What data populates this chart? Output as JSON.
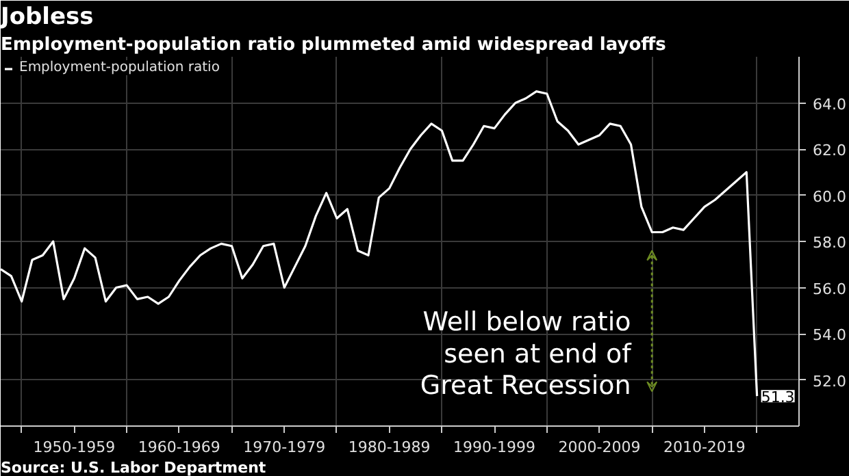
{
  "chart_data": {
    "type": "line",
    "title": "Jobless",
    "subtitle": "Employment-population ratio plummeted amid widespread layoffs",
    "categories": [
      null,
      null,
      null,
      null,
      null,
      null,
      null,
      "1950-1959",
      null,
      null,
      null,
      null,
      null,
      null,
      null,
      null,
      null,
      "1960-1969",
      null,
      null,
      null,
      null,
      null,
      null,
      null,
      null,
      null,
      "1970-1979",
      null,
      null,
      null,
      null,
      null,
      null,
      null,
      null,
      null,
      "1980-1989",
      null,
      null,
      null,
      null,
      null,
      null,
      null,
      null,
      null,
      "1990-1999",
      null,
      null,
      null,
      null,
      null,
      null,
      null,
      null,
      null,
      "2000-2009",
      null,
      null,
      null,
      null,
      null,
      null,
      null,
      null,
      null,
      "2010-2019",
      null,
      null,
      null,
      null,
      null
    ],
    "series": [
      {
        "name": "Employment-population ratio",
        "color": "#ffffff",
        "values": [
          56.8,
          56.5,
          55.4,
          57.2,
          57.4,
          58.0,
          55.5,
          56.4,
          57.7,
          57.3,
          55.4,
          56.0,
          56.1,
          55.5,
          55.6,
          55.3,
          55.6,
          56.3,
          56.9,
          57.4,
          57.7,
          57.9,
          57.8,
          56.4,
          57.0,
          57.8,
          57.9,
          56.0,
          56.9,
          57.8,
          59.1,
          60.1,
          59.0,
          59.4,
          57.6,
          57.4,
          59.9,
          60.3,
          61.2,
          62.0,
          62.6,
          63.1,
          62.8,
          61.5,
          61.5,
          62.2,
          63.0,
          62.9,
          63.5,
          64.0,
          64.2,
          64.5,
          64.4,
          63.2,
          62.8,
          62.2,
          62.4,
          62.6,
          63.1,
          63.0,
          62.2,
          59.5,
          58.4,
          58.4,
          58.6,
          58.5,
          59.0,
          59.5,
          59.8,
          60.2,
          60.6,
          61.0,
          51.3
        ],
        "value_labels": [
          null,
          null,
          null,
          null,
          null,
          null,
          null,
          null,
          null,
          null,
          null,
          null,
          null,
          null,
          null,
          null,
          null,
          null,
          null,
          null,
          null,
          null,
          null,
          null,
          null,
          null,
          null,
          null,
          null,
          null,
          null,
          null,
          null,
          null,
          null,
          null,
          null,
          null,
          null,
          null,
          null,
          null,
          null,
          null,
          null,
          null,
          null,
          null,
          null,
          null,
          null,
          null,
          null,
          null,
          null,
          null,
          null,
          null,
          null,
          null,
          null,
          null,
          null,
          null,
          null,
          null,
          null,
          null,
          null,
          null,
          null,
          null,
          "51.3"
        ]
      }
    ],
    "ylim": [
      50,
      66
    ],
    "yticks": [
      {
        "value": 52,
        "label": "52.0"
      },
      {
        "value": 54,
        "label": "54.0"
      },
      {
        "value": 56,
        "label": "56.0"
      },
      {
        "value": 58,
        "label": "58.0"
      },
      {
        "value": 60,
        "label": "60.0"
      },
      {
        "value": 62,
        "label": "62.0"
      },
      {
        "value": 64,
        "label": "64.0"
      }
    ],
    "grid": true,
    "legend": "top left",
    "annotations": [
      "Well below ratio seen at end of Great Recession",
      "Source: U.S. Labor Department"
    ]
  }
}
